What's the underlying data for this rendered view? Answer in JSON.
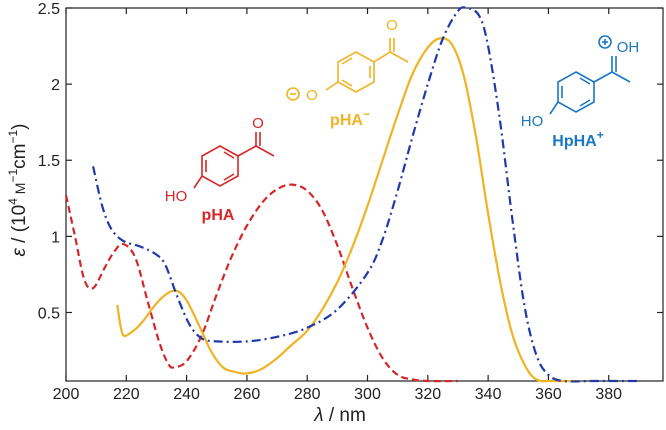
{
  "chart_data": {
    "type": "line",
    "xlabel_var": "λ",
    "xlabel_unit": " / nm",
    "ylabel_var": "ε",
    "ylabel_unit": " / (10",
    "ylabel_exp1": "4",
    "ylabel_mid": " M",
    "ylabel_exp2": "−1",
    "ylabel_mid2": "cm",
    "ylabel_exp3": "−1",
    "ylabel_end": ")",
    "xlim": [
      200,
      398
    ],
    "ylim": [
      0.05,
      2.5
    ],
    "x_ticks": [
      200,
      220,
      240,
      260,
      280,
      300,
      320,
      340,
      360,
      380
    ],
    "y_ticks": [
      0.5,
      1,
      1.5,
      2,
      2.5
    ],
    "x_tick_labels": [
      "200",
      "220",
      "240",
      "260",
      "280",
      "300",
      "320",
      "340",
      "360",
      "380"
    ],
    "y_tick_labels": [
      "0.5",
      "1",
      "1.5",
      "2",
      "2.5"
    ],
    "series": [
      {
        "color": "#d62728",
        "dash": "dashed",
        "points": [
          [
            200,
            1.27
          ],
          [
            203,
            1.0
          ],
          [
            206,
            0.72
          ],
          [
            209,
            0.66
          ],
          [
            213,
            0.8
          ],
          [
            216,
            0.9
          ],
          [
            219,
            0.95
          ],
          [
            223,
            0.86
          ],
          [
            227,
            0.58
          ],
          [
            231,
            0.3
          ],
          [
            234,
            0.16
          ],
          [
            236,
            0.14
          ],
          [
            240,
            0.18
          ],
          [
            245,
            0.35
          ],
          [
            250,
            0.62
          ],
          [
            255,
            0.87
          ],
          [
            260,
            1.07
          ],
          [
            265,
            1.22
          ],
          [
            270,
            1.31
          ],
          [
            275,
            1.34
          ],
          [
            280,
            1.3
          ],
          [
            285,
            1.17
          ],
          [
            290,
            0.94
          ],
          [
            295,
            0.66
          ],
          [
            300,
            0.4
          ],
          [
            305,
            0.2
          ],
          [
            310,
            0.09
          ],
          [
            315,
            0.06
          ],
          [
            320,
            0.05
          ],
          [
            330,
            0.05
          ]
        ]
      },
      {
        "color": "#f0b323",
        "dash": "solid",
        "points": [
          [
            217,
            0.55
          ],
          [
            218,
            0.42
          ],
          [
            219,
            0.35
          ],
          [
            221,
            0.36
          ],
          [
            225,
            0.43
          ],
          [
            230,
            0.56
          ],
          [
            234,
            0.63
          ],
          [
            237,
            0.64
          ],
          [
            240,
            0.58
          ],
          [
            244,
            0.42
          ],
          [
            248,
            0.25
          ],
          [
            252,
            0.14
          ],
          [
            256,
            0.11
          ],
          [
            260,
            0.1
          ],
          [
            265,
            0.13
          ],
          [
            270,
            0.2
          ],
          [
            275,
            0.29
          ],
          [
            280,
            0.38
          ],
          [
            285,
            0.52
          ],
          [
            290,
            0.7
          ],
          [
            295,
            0.93
          ],
          [
            300,
            1.2
          ],
          [
            305,
            1.5
          ],
          [
            310,
            1.8
          ],
          [
            315,
            2.07
          ],
          [
            320,
            2.24
          ],
          [
            324,
            2.3
          ],
          [
            328,
            2.26
          ],
          [
            332,
            2.05
          ],
          [
            336,
            1.65
          ],
          [
            340,
            1.15
          ],
          [
            344,
            0.7
          ],
          [
            348,
            0.36
          ],
          [
            352,
            0.16
          ],
          [
            356,
            0.06
          ],
          [
            362,
            0.03
          ],
          [
            370,
            0.02
          ]
        ]
      },
      {
        "color": "#1f3aa8",
        "dash": "dashdot",
        "points": [
          [
            209,
            1.46
          ],
          [
            212,
            1.2
          ],
          [
            215,
            1.05
          ],
          [
            219,
            0.97
          ],
          [
            225,
            0.93
          ],
          [
            230,
            0.88
          ],
          [
            233,
            0.81
          ],
          [
            237,
            0.6
          ],
          [
            241,
            0.42
          ],
          [
            245,
            0.33
          ],
          [
            250,
            0.31
          ],
          [
            260,
            0.31
          ],
          [
            270,
            0.34
          ],
          [
            280,
            0.4
          ],
          [
            290,
            0.52
          ],
          [
            300,
            0.76
          ],
          [
            305,
            0.98
          ],
          [
            310,
            1.3
          ],
          [
            315,
            1.66
          ],
          [
            320,
            2.0
          ],
          [
            325,
            2.3
          ],
          [
            330,
            2.48
          ],
          [
            333,
            2.51
          ],
          [
            337,
            2.45
          ],
          [
            340,
            2.25
          ],
          [
            344,
            1.75
          ],
          [
            348,
            1.12
          ],
          [
            352,
            0.55
          ],
          [
            356,
            0.22
          ],
          [
            360,
            0.09
          ],
          [
            365,
            0.04
          ],
          [
            375,
            0.02
          ],
          [
            390,
            0.01
          ]
        ]
      }
    ]
  },
  "molecules": {
    "pHA": {
      "color": "#d62728",
      "label_pre": "p",
      "label_main": "HA",
      "oh_text": "HO",
      "o_text": "O"
    },
    "pHA_minus": {
      "color": "#f0b323",
      "label_pre": "p",
      "label_main": "HA",
      "label_sup": "−",
      "o_minus_text": "O",
      "o_text": "O"
    },
    "HpHA_plus": {
      "color": "#1a78c2",
      "label_pre": "Hp",
      "label_main": "HA",
      "label_sup": "+",
      "oh_text": "HO",
      "oh_plus_text": "OH"
    }
  }
}
